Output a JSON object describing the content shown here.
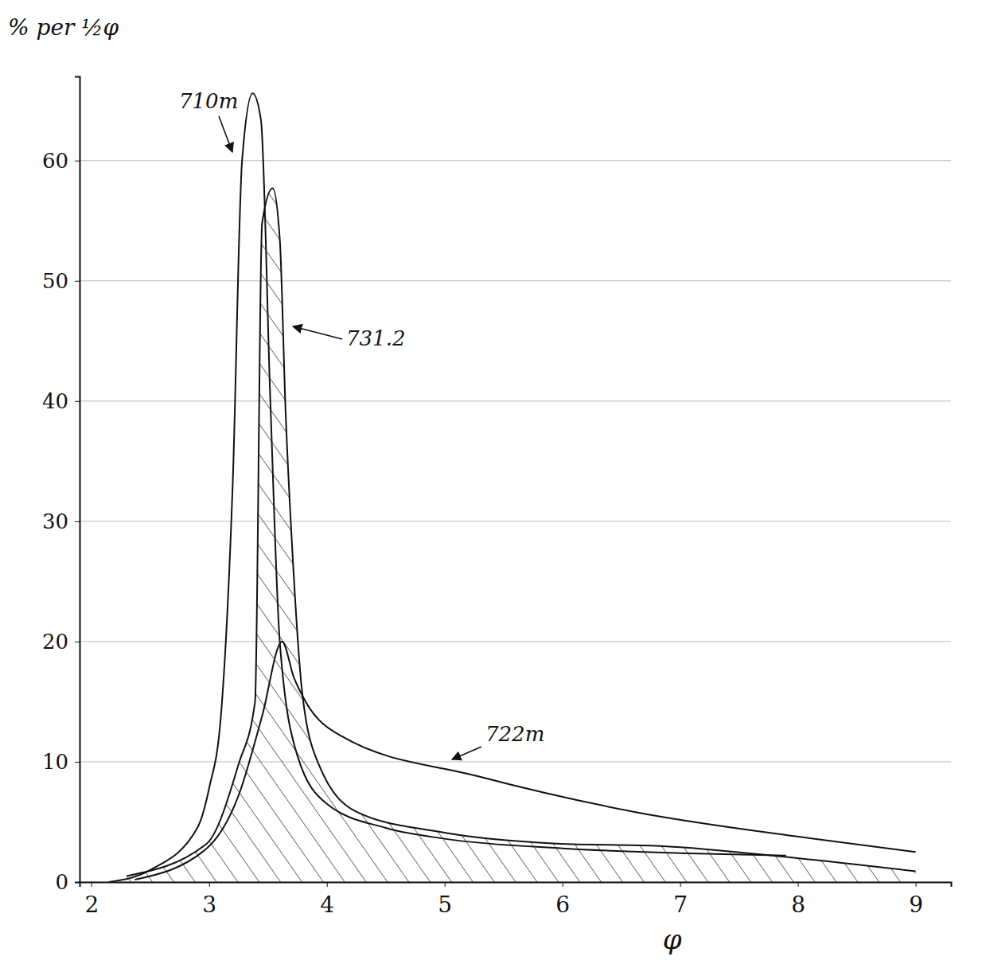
{
  "chart_data": {
    "type": "line",
    "x_label": "φ",
    "y_label": "% per ½φ",
    "xlim": [
      1.9,
      9.3
    ],
    "xticks": [
      2,
      3,
      4,
      5,
      6,
      7,
      8,
      9
    ],
    "ylim": [
      0,
      67
    ],
    "yticks": [
      0,
      10,
      20,
      30,
      40,
      50,
      60
    ],
    "grid": true,
    "series": [
      {
        "name": "710m",
        "type": "line",
        "color": "#111111",
        "x": [
          2.15,
          2.5,
          2.9,
          3.0,
          3.1,
          3.2,
          3.28,
          3.37,
          3.44,
          3.52,
          3.6,
          3.75,
          4.0,
          4.5,
          5.0,
          6.0,
          7.0,
          7.9
        ],
        "values": [
          0,
          1,
          4.5,
          7.8,
          13.8,
          33,
          60,
          65.6,
          63.4,
          40,
          20,
          10.5,
          6.5,
          4.5,
          3.6,
          2.8,
          2.4,
          2.2
        ]
      },
      {
        "name": "731.2",
        "type": "area",
        "color": "#111111",
        "x": [
          2.3,
          2.98,
          3.25,
          3.39,
          3.45,
          3.54,
          3.6,
          3.65,
          3.71,
          3.79,
          3.93,
          4.26,
          4.94,
          5.95,
          6.83,
          7.98,
          9.0
        ],
        "values": [
          0.5,
          3.2,
          9.8,
          15,
          54.8,
          57.7,
          53.5,
          39,
          27,
          15.8,
          9.8,
          5.8,
          4.2,
          3.2,
          3.0,
          2.0,
          0.9
        ]
      },
      {
        "name": "722m",
        "type": "line",
        "color": "#111111",
        "x": [
          2.37,
          2.98,
          3.25,
          3.45,
          3.62,
          3.72,
          3.82,
          4.13,
          5.28,
          6.63,
          7.98,
          9.0
        ],
        "values": [
          0.2,
          2.8,
          7.2,
          13.8,
          20,
          17,
          15,
          12.1,
          8.8,
          5.8,
          3.8,
          2.5
        ]
      }
    ]
  }
}
